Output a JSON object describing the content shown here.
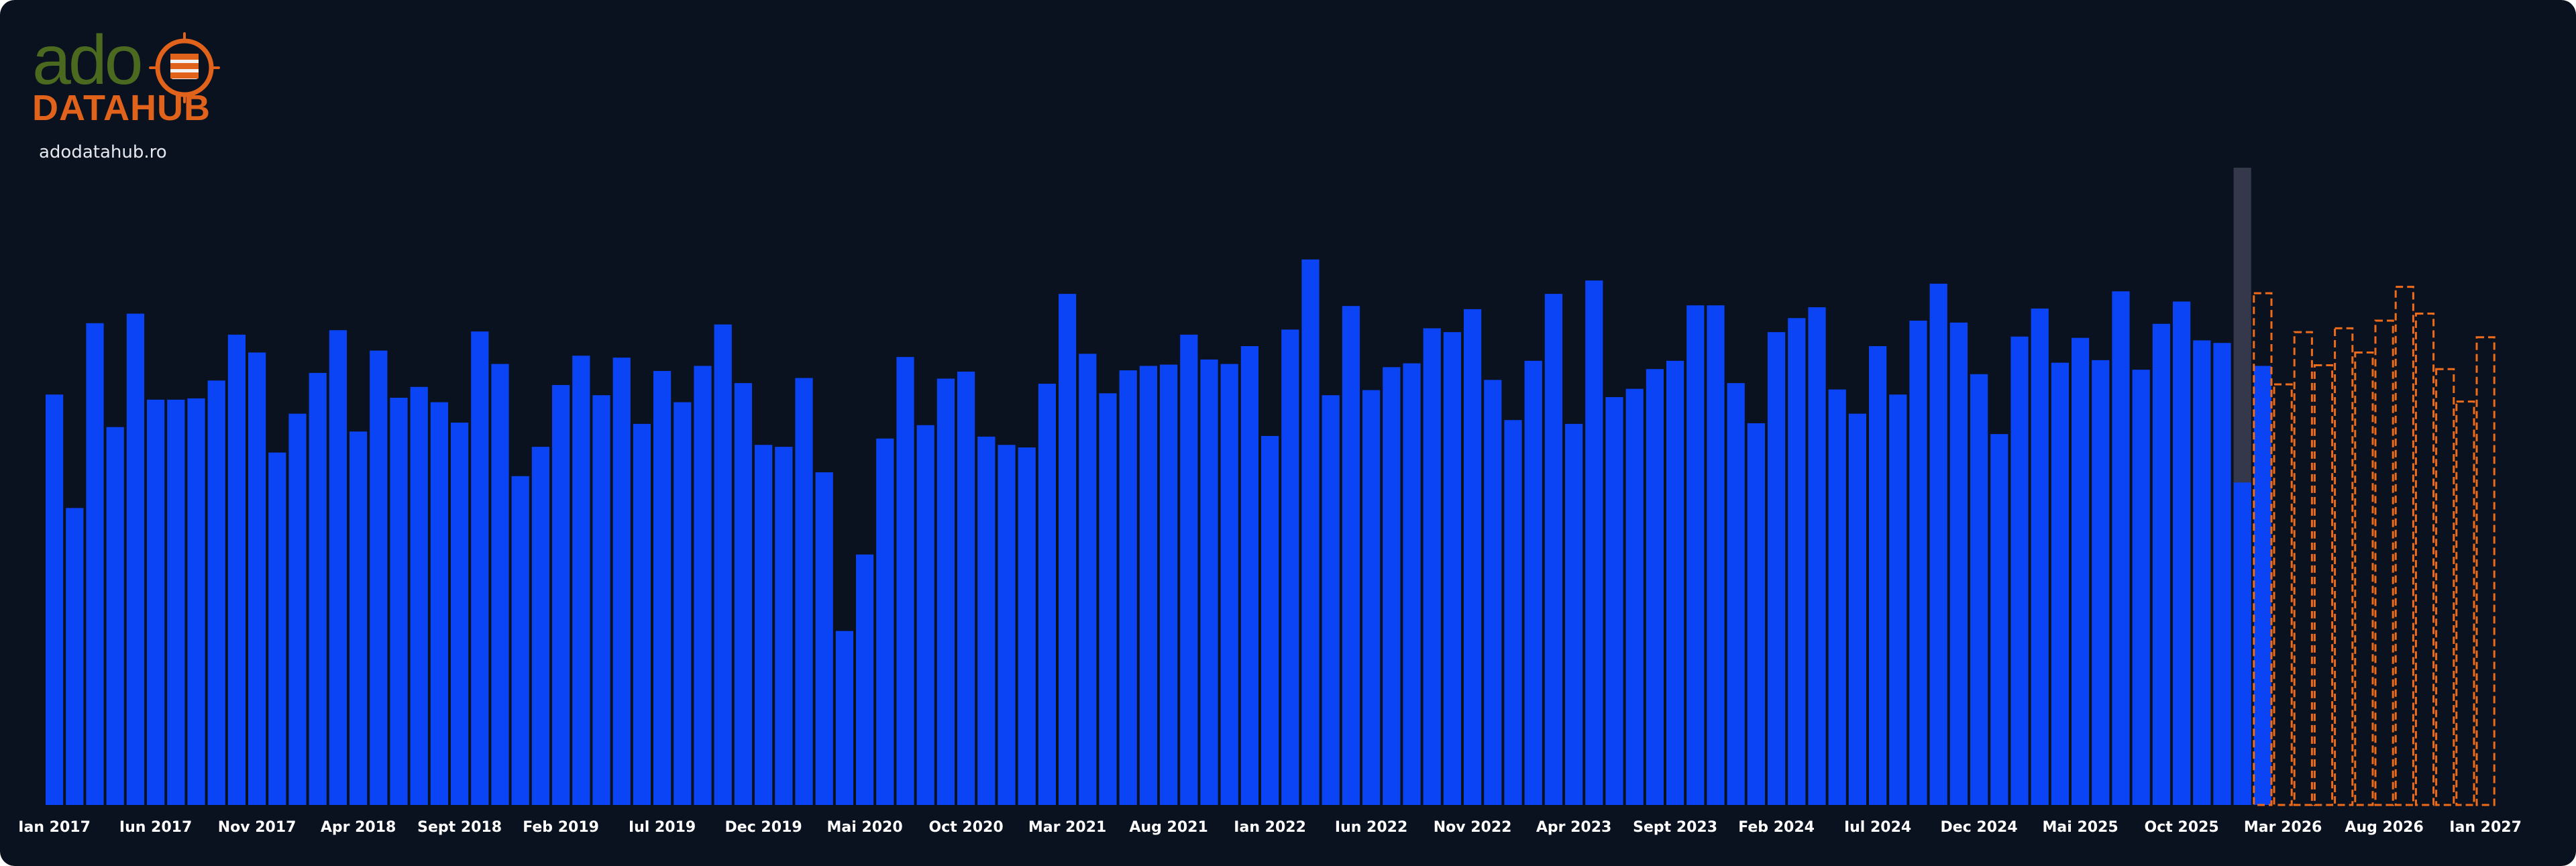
{
  "brand": {
    "logo_text": "ado",
    "logo_sub": "DATAHUB",
    "site": "adodatahub.ro"
  },
  "colors": {
    "background": "#0a1220",
    "bar": "#0a44f5",
    "forecast_stroke": "#ee6b1a",
    "highlight": "#34384a",
    "tick_text": "#ffffff"
  },
  "chart_data": {
    "type": "bar",
    "title": "",
    "xlabel": "",
    "ylabel": "",
    "ylim": [
      0,
      100
    ],
    "grid": false,
    "legend": "none",
    "x_ticks": [
      "Ian 2017",
      "Iun 2017",
      "Nov 2017",
      "Apr 2018",
      "Sept 2018",
      "Feb 2019",
      "Iul 2019",
      "Dec 2019",
      "Mai 2020",
      "Oct 2020",
      "Mar 2021",
      "Aug 2021",
      "Ian 2022",
      "Iun 2022",
      "Nov 2022",
      "Apr 2023",
      "Sept 2023",
      "Feb 2024",
      "Iul 2024",
      "Dec 2024",
      "Mai 2025",
      "Oct 2025",
      "Mar 2026",
      "Aug 2026",
      "Ian 2027"
    ],
    "series": [
      {
        "kind": "actual",
        "start": "2017-01",
        "values": [
          64.4,
          46.6,
          75.6,
          59.3,
          77.1,
          63.6,
          63.6,
          63.8,
          66.6,
          73.8,
          71.0,
          55.3,
          61.4,
          67.8,
          74.5,
          58.6,
          71.3,
          63.9,
          65.6,
          63.2,
          60.0,
          74.3,
          69.2,
          51.6,
          56.2,
          65.9,
          70.5,
          64.3,
          70.2,
          59.8,
          68.1,
          63.2,
          68.9,
          75.4,
          66.2,
          56.5,
          56.2,
          67.0,
          52.2,
          27.3,
          39.3,
          57.5,
          70.3,
          59.6,
          66.9,
          68.0,
          57.8,
          56.5,
          56.1,
          66.1,
          80.2,
          70.8,
          64.6,
          68.2,
          68.9,
          69.1,
          73.8,
          69.9,
          69.2,
          72.0,
          57.9,
          74.6,
          85.6,
          64.3,
          78.3,
          65.1,
          68.7,
          69.3,
          74.8,
          74.2,
          77.8,
          66.7,
          60.4,
          69.7,
          80.2,
          59.8,
          82.3,
          64.0,
          65.3,
          68.4,
          69.7,
          78.4,
          78.4,
          66.2,
          59.9,
          74.2,
          76.4,
          78.1,
          65.2,
          61.4,
          72.0,
          64.4,
          76.0,
          81.8,
          75.7,
          67.6,
          58.2,
          73.5,
          77.9,
          69.4,
          73.3,
          69.8,
          80.6,
          68.3,
          75.5,
          79.0,
          72.9,
          72.5,
          50.6,
          68.9
        ]
      },
      {
        "kind": "forecast",
        "start": "2026-02",
        "values": [
          80.3,
          66.0,
          74.2,
          69.0,
          74.8,
          71.0,
          76.0,
          81.3,
          77.1,
          68.4,
          63.3,
          73.4
        ]
      }
    ],
    "highlight_month": "2026-01",
    "highlight_top": 100
  }
}
